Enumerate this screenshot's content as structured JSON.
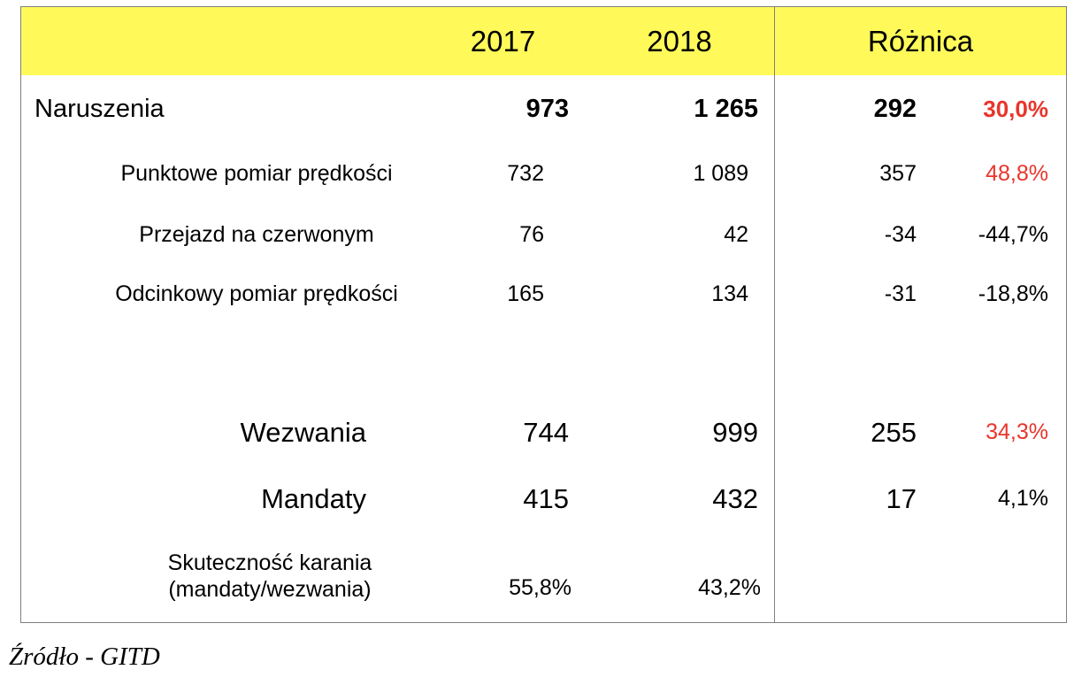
{
  "table": {
    "header": {
      "label": "",
      "col_2017": "2017",
      "col_2018": "2018",
      "col_diff": "Różnica"
    },
    "rows": [
      {
        "type": "main",
        "label": "Naruszenia",
        "y2017": "973",
        "y2018": "1 265",
        "diff": "292",
        "pct": "30,0%",
        "pct_color": "red"
      },
      {
        "type": "sub",
        "label": "Punktowe pomiar prędkości",
        "y2017": "732",
        "y2018": "1 089",
        "diff": "357",
        "pct": "48,8%",
        "pct_color": "red"
      },
      {
        "type": "sub",
        "label": "Przejazd na czerwonym",
        "y2017": "76",
        "y2018": "42",
        "diff": "-34",
        "pct": "-44,7%",
        "pct_color": "black"
      },
      {
        "type": "sub",
        "label": "Odcinkowy pomiar prędkości",
        "y2017": "165",
        "y2018": "134",
        "diff": "-31",
        "pct": "-18,8%",
        "pct_color": "black"
      },
      {
        "type": "spacer"
      },
      {
        "type": "large",
        "label": "Wezwania",
        "y2017": "744",
        "y2018": "999",
        "diff": "255",
        "pct": "34,3%",
        "pct_color": "red"
      },
      {
        "type": "large",
        "label": "Mandaty",
        "y2017": "415",
        "y2018": "432",
        "diff": "17",
        "pct": "4,1%",
        "pct_color": "black"
      },
      {
        "type": "ratio",
        "label_line1": "Skuteczność karania",
        "label_line2": "(mandaty/wezwania)",
        "y2017": "55,8%",
        "y2018": "43,2%",
        "diff": "",
        "pct": ""
      }
    ]
  },
  "source": "Źródło - GITD",
  "colors": {
    "header_bg": "#fffa5a",
    "highlight_pct": "#e8352b",
    "border": "#7f7f7f",
    "text": "#000000"
  }
}
